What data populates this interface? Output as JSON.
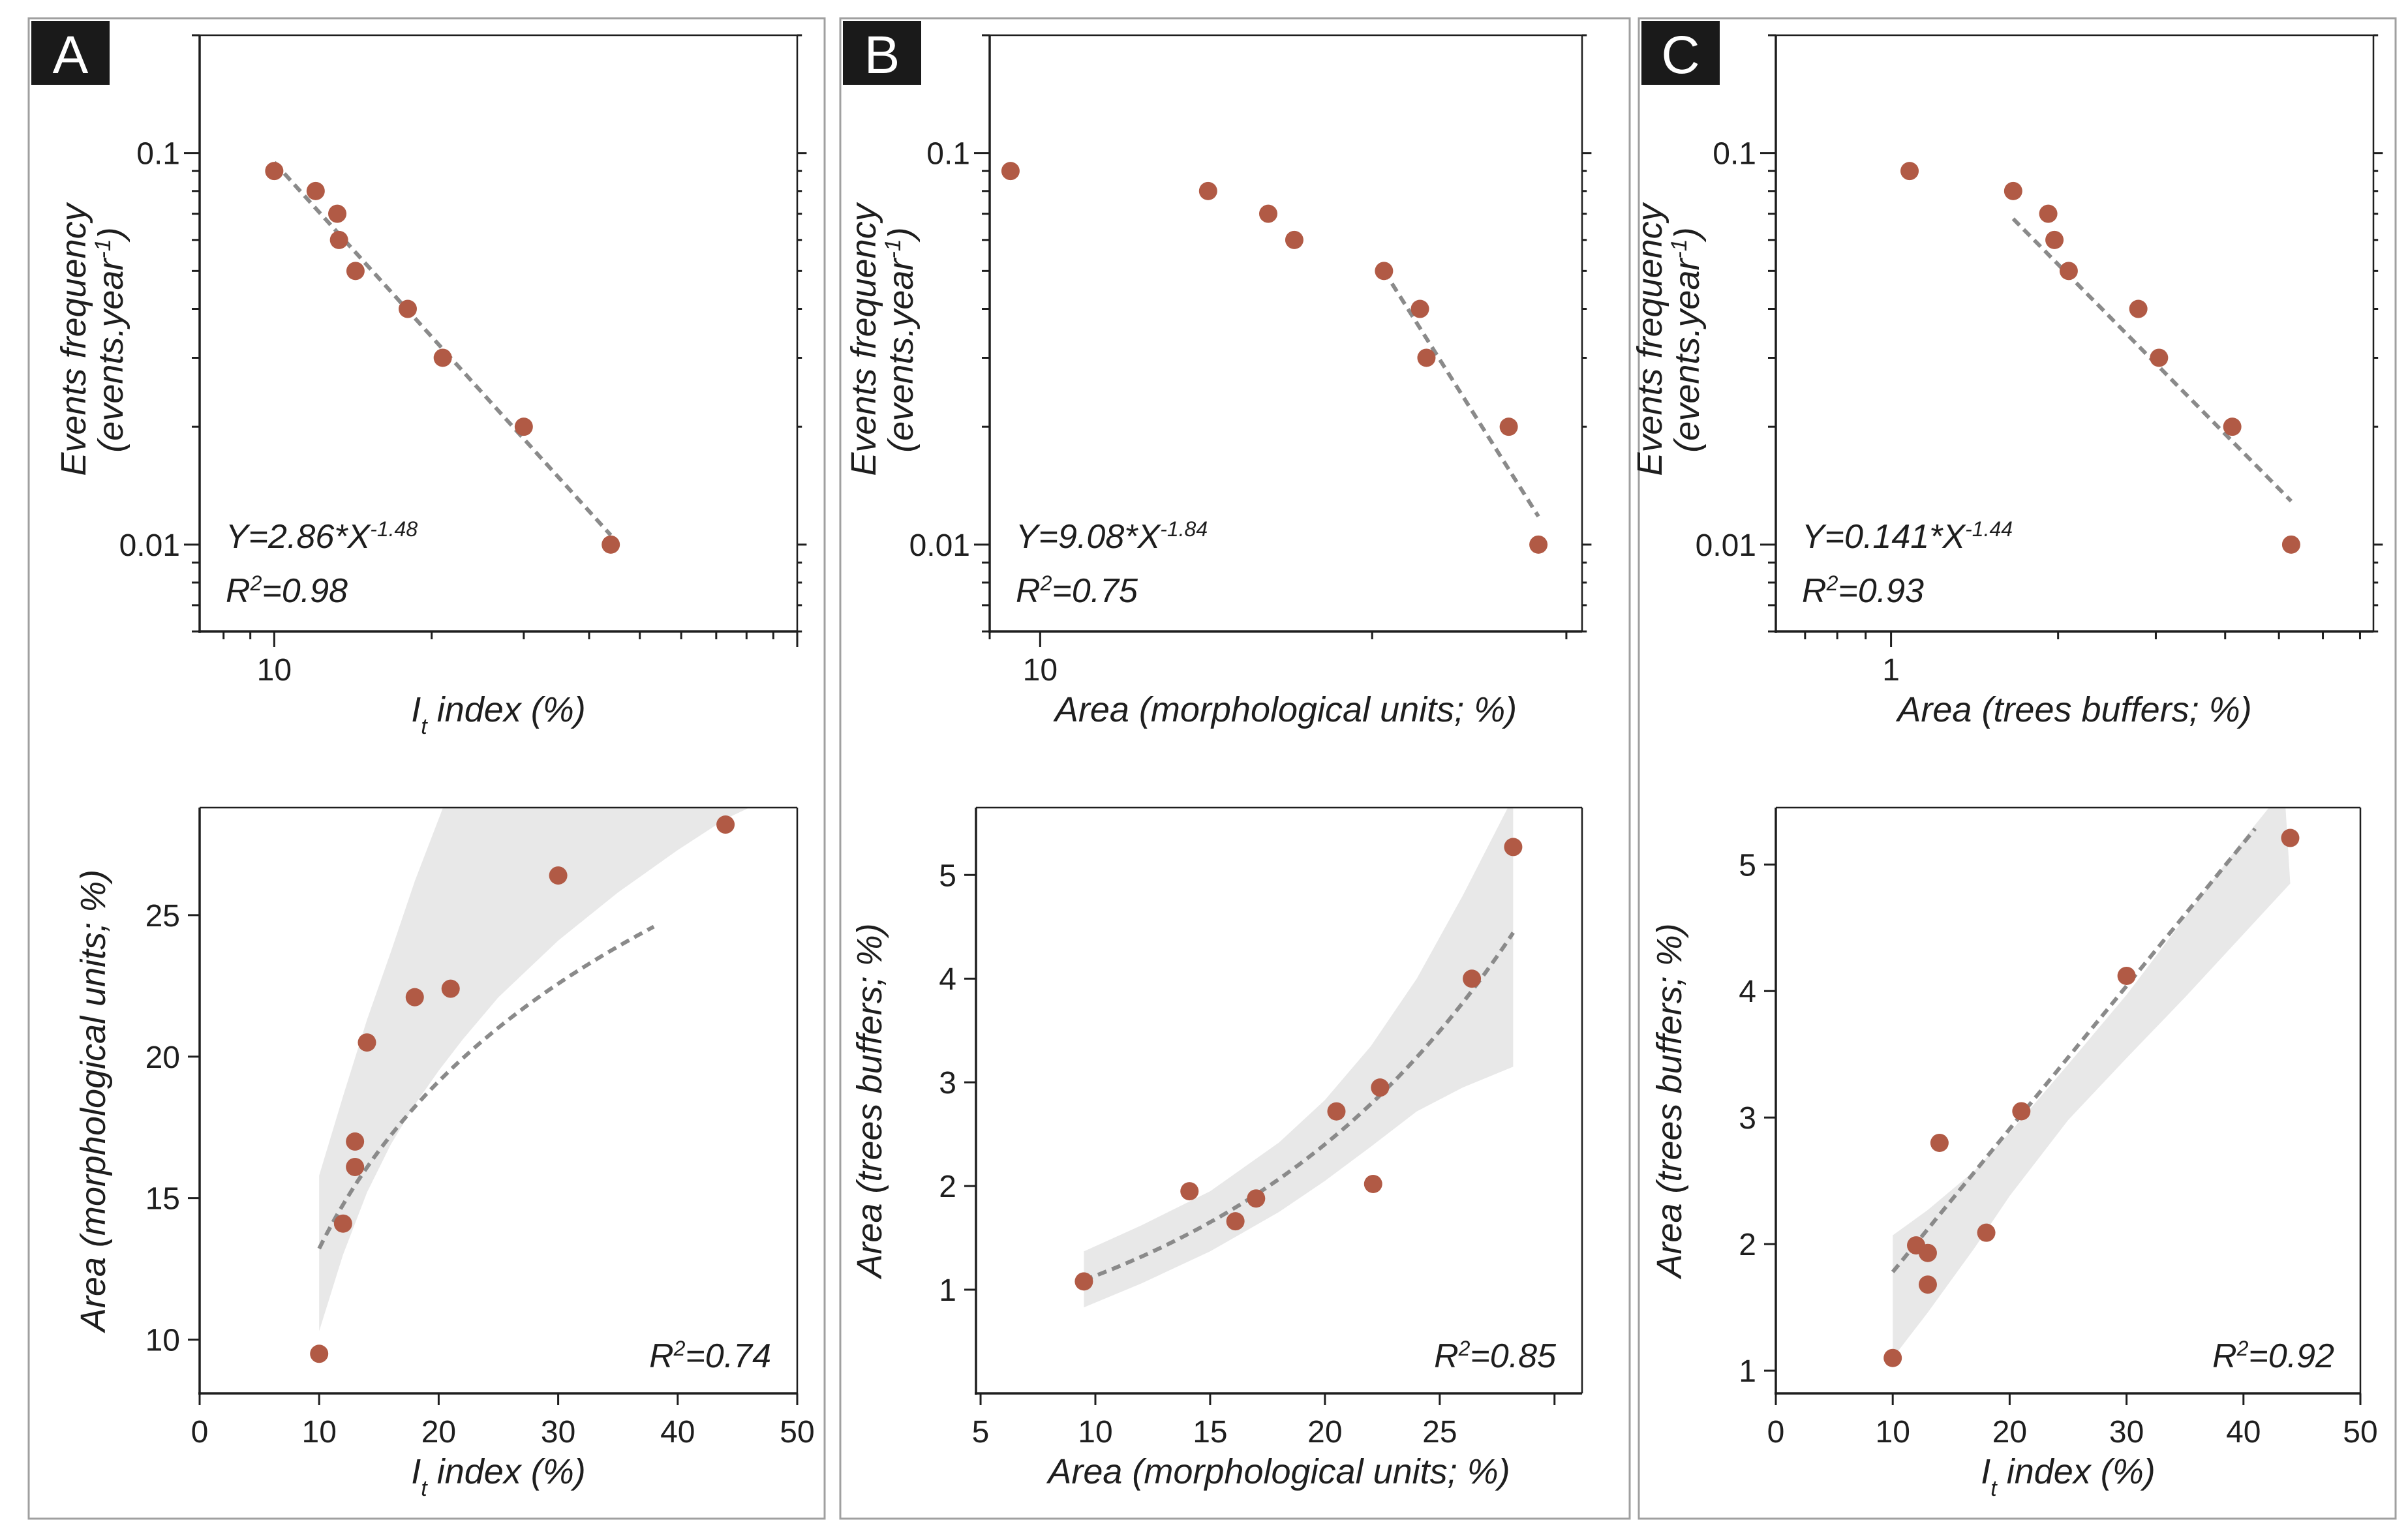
{
  "panels": [
    {
      "letter": "A"
    },
    {
      "letter": "B"
    },
    {
      "letter": "C"
    }
  ],
  "chart_data": [
    {
      "id": "A_top",
      "type": "scatter",
      "xscale": "log",
      "yscale": "log",
      "xlim": [
        7.2,
        100
      ],
      "ylim": [
        0.006,
        0.2
      ],
      "xticks": [
        10
      ],
      "xtick_labels": [
        "10"
      ],
      "yticks": [
        0.1,
        0.01
      ],
      "ytick_labels": [
        "0.1",
        "0.01"
      ],
      "xlabel": "I",
      "xlabel_sub": "t",
      "xlabel_rest": " index (%)",
      "ylabel_lines": [
        "Events frequency",
        "(events.year",
        ")"
      ],
      "ylabel_sup": "-1",
      "annotation": {
        "equation_prefix": "Y=2.86*X",
        "equation_exp": "-1.48",
        "r2_label": "R",
        "r2_sup": "2",
        "r2_value": "=0.98"
      },
      "points": {
        "x": [
          10,
          12,
          13.2,
          13.3,
          14.3,
          18,
          21,
          30,
          44
        ],
        "y": [
          0.09,
          0.08,
          0.07,
          0.06,
          0.05,
          0.04,
          0.03,
          0.02,
          0.01
        ]
      },
      "fit": {
        "kind": "power",
        "a": 2.86,
        "b": -1.48,
        "x_range": [
          10,
          44
        ]
      }
    },
    {
      "id": "B_top",
      "type": "scatter",
      "xscale": "log",
      "yscale": "log",
      "xlim": [
        9,
        31
      ],
      "ylim": [
        0.006,
        0.2
      ],
      "xticks": [
        10
      ],
      "xtick_labels": [
        "10"
      ],
      "yticks": [
        0.1,
        0.01
      ],
      "ytick_labels": [
        "0.1",
        "0.01"
      ],
      "xlabel": "Area (morphological units; %)",
      "ylabel_lines": [
        "Events frequency",
        "(events.year",
        ")"
      ],
      "ylabel_sup": "-1",
      "annotation": {
        "equation_prefix": "Y=9.08*X",
        "equation_exp": "-1.84",
        "r2_label": "R",
        "r2_sup": "2",
        "r2_value": "=0.75"
      },
      "points": {
        "x": [
          9.4,
          14.2,
          16.1,
          17,
          20.5,
          22.1,
          22.4,
          26.6,
          28.3
        ],
        "y": [
          0.09,
          0.08,
          0.07,
          0.06,
          0.05,
          0.04,
          0.03,
          0.02,
          0.01
        ]
      },
      "fit": {
        "kind": "segment",
        "x_range": [
          20.5,
          28.3
        ],
        "y_range": [
          0.05,
          0.0118
        ]
      }
    },
    {
      "id": "C_top",
      "type": "scatter",
      "xscale": "log",
      "yscale": "log",
      "xlim": [
        0.62,
        7.4
      ],
      "ylim": [
        0.006,
        0.2
      ],
      "xticks": [
        1
      ],
      "xtick_labels": [
        "1"
      ],
      "yticks": [
        0.1,
        0.01
      ],
      "ytick_labels": [
        "0.1",
        "0.01"
      ],
      "xlabel": "Area (trees buffers; %)",
      "ylabel_lines": [
        "Events frequency",
        "(events.year",
        ")"
      ],
      "ylabel_sup": "-1",
      "annotation": {
        "equation_prefix": "Y=0.141*X",
        "equation_exp": "-1.44",
        "r2_label": "R",
        "r2_sup": "2",
        "r2_value": "=0.93"
      },
      "points": {
        "x": [
          1.08,
          1.66,
          1.92,
          1.97,
          2.09,
          2.79,
          3.04,
          4.12,
          5.26
        ],
        "y": [
          0.09,
          0.08,
          0.07,
          0.06,
          0.05,
          0.04,
          0.03,
          0.02,
          0.01
        ]
      },
      "fit": {
        "kind": "power",
        "a": 0.141,
        "b": -1.44,
        "x_range": [
          1.66,
          5.26
        ]
      }
    },
    {
      "id": "A_bottom",
      "type": "scatter",
      "xscale": "linear",
      "yscale": "linear",
      "xlim": [
        0,
        50
      ],
      "ylim": [
        8.1,
        28.8
      ],
      "xticks": [
        0,
        10,
        20,
        30,
        40,
        50
      ],
      "xtick_labels": [
        "0",
        "10",
        "20",
        "30",
        "40",
        "50"
      ],
      "yticks": [
        10,
        15,
        20,
        25
      ],
      "ytick_labels": [
        "10",
        "15",
        "20",
        "25"
      ],
      "xlabel": "I",
      "xlabel_sub": "t",
      "xlabel_rest": " index (%)",
      "ylabel": "Area (morphological units; %)",
      "annotation": {
        "r2_label": "R",
        "r2_sup": "2",
        "r2_value": "=0.74"
      },
      "points": {
        "x": [
          10,
          12,
          13,
          13,
          14,
          18,
          21,
          30,
          44
        ],
        "y": [
          9.5,
          14.1,
          16.1,
          17,
          20.5,
          22.1,
          22.4,
          26.4,
          28.2
        ]
      },
      "fit": {
        "kind": "log",
        "a": -6.4,
        "b": 8.52,
        "x_range": [
          10,
          38
        ]
      },
      "band": {
        "upper": [
          [
            10,
            15.8
          ],
          [
            12,
            18.6
          ],
          [
            14,
            21.3
          ],
          [
            16,
            23.7
          ],
          [
            18,
            26.2
          ],
          [
            20,
            28.4
          ],
          [
            21,
            29.5
          ]
        ],
        "lower": [
          [
            10,
            10.3
          ],
          [
            12,
            13.0
          ],
          [
            14,
            15.2
          ],
          [
            16,
            16.9
          ],
          [
            18,
            18.3
          ],
          [
            20,
            19.5
          ],
          [
            22,
            20.6
          ],
          [
            25,
            22.1
          ],
          [
            30,
            24.1
          ],
          [
            35,
            25.8
          ],
          [
            40,
            27.3
          ],
          [
            44,
            28.4
          ],
          [
            50,
            29.6
          ]
        ]
      }
    },
    {
      "id": "B_bottom",
      "type": "scatter",
      "xscale": "linear",
      "yscale": "linear",
      "xlim": [
        4.8,
        31.2
      ],
      "ylim": [
        0,
        5.65
      ],
      "xticks": [
        5,
        10,
        15,
        20,
        25,
        30
      ],
      "xtick_labels": [
        "5",
        "10",
        "15",
        "20",
        "25",
        ""
      ],
      "yticks": [
        1,
        2,
        3,
        4,
        5
      ],
      "ytick_labels": [
        "1",
        "2",
        "3",
        "4",
        "5"
      ],
      "xlabel": "Area (morphological units; %)",
      "ylabel": "Area (trees buffers; %)",
      "annotation": {
        "r2_label": "R",
        "r2_sup": "2",
        "r2_value": "=0.85"
      },
      "points": {
        "x": [
          9.5,
          14.1,
          16.1,
          17,
          20.5,
          22.1,
          22.4,
          26.4,
          28.2
        ],
        "y": [
          1.08,
          1.95,
          1.66,
          1.88,
          2.72,
          2.02,
          2.95,
          4.0,
          5.27
        ]
      },
      "fit": {
        "kind": "exp",
        "a": 0.536,
        "b": 0.075,
        "x_range": [
          9.5,
          28.2
        ]
      },
      "band": {
        "upper": [
          [
            9.5,
            1.37
          ],
          [
            12,
            1.62
          ],
          [
            15,
            1.95
          ],
          [
            18,
            2.42
          ],
          [
            20,
            2.83
          ],
          [
            22,
            3.35
          ],
          [
            24,
            4.0
          ],
          [
            26,
            4.8
          ],
          [
            28.2,
            5.75
          ]
        ],
        "lower": [
          [
            9.5,
            0.83
          ],
          [
            12,
            1.06
          ],
          [
            15,
            1.37
          ],
          [
            18,
            1.75
          ],
          [
            20,
            2.05
          ],
          [
            22,
            2.38
          ],
          [
            24,
            2.72
          ],
          [
            26,
            2.95
          ],
          [
            28.2,
            3.15
          ]
        ]
      }
    },
    {
      "id": "C_bottom",
      "type": "scatter",
      "xscale": "linear",
      "yscale": "linear",
      "xlim": [
        0,
        50
      ],
      "ylim": [
        0.82,
        5.45
      ],
      "xticks": [
        0,
        10,
        20,
        30,
        40,
        50
      ],
      "xtick_labels": [
        "0",
        "10",
        "20",
        "30",
        "40",
        "50"
      ],
      "yticks": [
        1,
        2,
        3,
        4,
        5
      ],
      "ytick_labels": [
        "1",
        "2",
        "3",
        "4",
        "5"
      ],
      "xlabel": "I",
      "xlabel_sub": "t",
      "xlabel_rest": " index (%)",
      "ylabel": "Area (trees buffers; %)",
      "annotation": {
        "r2_label": "R",
        "r2_sup": "2",
        "r2_value": "=0.92"
      },
      "points": {
        "x": [
          10,
          12,
          13,
          13,
          14,
          18,
          21,
          30,
          44
        ],
        "y": [
          1.1,
          1.99,
          1.68,
          1.93,
          2.8,
          2.09,
          3.05,
          4.12,
          5.21
        ]
      },
      "fit": {
        "kind": "linear",
        "a": 0.65,
        "b": 0.113,
        "x_range": [
          10,
          41
        ]
      },
      "band": {
        "upper": [
          [
            10,
            2.07
          ],
          [
            13,
            2.27
          ],
          [
            17,
            2.58
          ],
          [
            20,
            2.88
          ],
          [
            25,
            3.42
          ],
          [
            30,
            3.97
          ],
          [
            35,
            4.58
          ],
          [
            40,
            5.2
          ],
          [
            43.5,
            5.6
          ]
        ],
        "lower": [
          [
            10,
            1.1
          ],
          [
            13,
            1.46
          ],
          [
            17,
            1.97
          ],
          [
            20,
            2.38
          ],
          [
            25,
            2.98
          ],
          [
            30,
            3.47
          ],
          [
            35,
            3.95
          ],
          [
            40,
            4.45
          ],
          [
            44,
            4.85
          ]
        ]
      }
    }
  ]
}
